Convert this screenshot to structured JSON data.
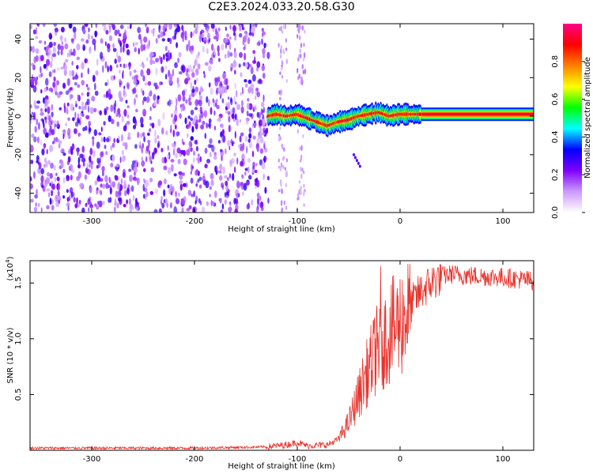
{
  "figure": {
    "title": "C2E3.2024.033.20.58.G30"
  },
  "chart_data": [
    {
      "type": "heatmap",
      "title": "",
      "xlabel": "Height of straight line (km)",
      "ylabel": "Frequency (Hz)",
      "xlim": [
        -360,
        130
      ],
      "ylim": [
        -50,
        48
      ],
      "xticks": [
        -300,
        -200,
        -100,
        0,
        100
      ],
      "xtick_labels": [
        "-300",
        "-200",
        "-100",
        "0",
        "100"
      ],
      "yticks": [
        -40,
        -20,
        0,
        20,
        40
      ],
      "ytick_labels": [
        "-40",
        "-20",
        "0",
        "20",
        "40"
      ],
      "colorbar": {
        "label": "Normalized spectral amplitude",
        "range": [
          0,
          1
        ],
        "ticks": [
          0.0,
          0.2,
          0.4,
          0.6,
          0.8
        ],
        "tick_labels": [
          "0.0",
          "0.2",
          "0.4",
          "0.6",
          "0.8"
        ],
        "colormap": [
          "#ffffff",
          "#cc99ff",
          "#7f00ff",
          "#0000ff",
          "#00ffff",
          "#00ff00",
          "#ffff00",
          "#ff7f00",
          "#ff0000",
          "#ff0088"
        ]
      },
      "regions": [
        {
          "name": "noise",
          "x_range": [
            -360,
            -128
          ],
          "y_range": [
            -50,
            48
          ],
          "amplitude": "0.1-0.3"
        },
        {
          "name": "signal",
          "x_range": [
            -128,
            130
          ],
          "amplitude": "0.3-1.0"
        }
      ],
      "signal_ridge": {
        "x": [
          -128,
          -120,
          -110,
          -100,
          -90,
          -80,
          -70,
          -60,
          -50,
          -40,
          -30,
          -20,
          -10,
          0,
          20,
          60,
          130
        ],
        "y": [
          0,
          1,
          0,
          1,
          -1,
          -3,
          -5,
          -3,
          -2,
          0,
          1,
          2,
          0,
          1,
          1,
          1,
          1
        ]
      }
    },
    {
      "type": "line",
      "title": "",
      "xlabel": "Height of straight line (km)",
      "ylabel": "SNR (10 * v/v)",
      "y_multiplier": "(x10",
      "y_multiplier_exp": "4",
      "xlim": [
        -360,
        130
      ],
      "ylim": [
        0,
        1.7
      ],
      "xticks": [
        -300,
        -200,
        -100,
        0,
        100
      ],
      "xtick_labels": [
        "-300",
        "-200",
        "-100",
        "0",
        "100"
      ],
      "yticks": [
        0.5,
        1.0,
        1.5
      ],
      "ytick_labels": [
        "0.5",
        "1.0",
        "1.5"
      ],
      "series": [
        {
          "color": "#e8322c",
          "x": [
            -360,
            -300,
            -200,
            -130,
            -110,
            -100,
            -90,
            -70,
            -60,
            -50,
            -40,
            -30,
            -20,
            -10,
            0,
            10,
            20,
            30,
            40,
            50,
            60,
            80,
            100,
            130
          ],
          "y": [
            0.02,
            0.02,
            0.02,
            0.03,
            0.05,
            0.07,
            0.04,
            0.05,
            0.1,
            0.25,
            0.5,
            0.75,
            0.95,
            1.05,
            1.15,
            1.3,
            1.42,
            1.5,
            1.56,
            1.58,
            1.57,
            1.56,
            1.55,
            1.52
          ]
        }
      ]
    }
  ]
}
